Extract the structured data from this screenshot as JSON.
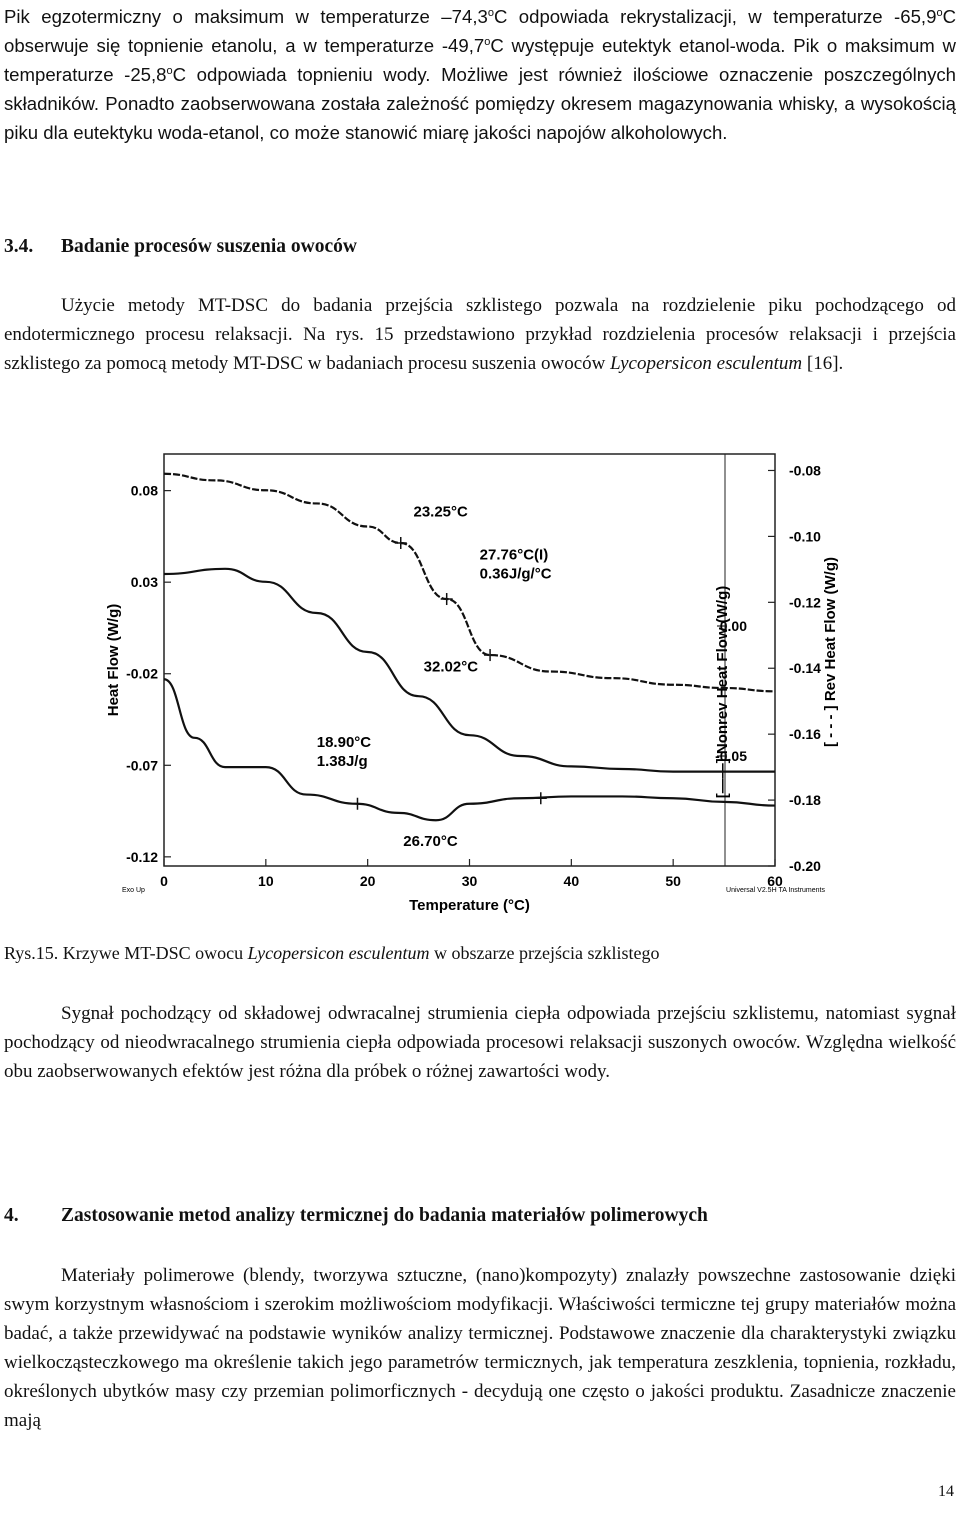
{
  "intro": {
    "line1_a": "Pik  egzotermiczny  o  maksimum  w  temperaturze  –74,3",
    "deg": "o",
    "line1_b": "C  odpowiada  rekrystalizacji,  w temperaturze -65,9",
    "line1_c": "C obserwuje się topnienie etanolu, a w temperaturze -49,7",
    "line1_d": "C występuje eutektyk etanol-woda. Pik o maksimum w temperaturze -25,8",
    "line1_e": "C odpowiada topnieniu wody. Możliwe jest również ilościowe oznaczenie poszczególnych składników. Ponadto zaobserwowana została zależność pomiędzy okresem magazynowania whisky, a wysokością piku dla eutektyku woda-etanol, co może stanowić miarę jakości napojów alkoholowych."
  },
  "section_3_4": {
    "number": "3.4.",
    "title": "Badanie procesów suszenia owoców",
    "para_a": "Użycie metody MT-DSC do badania przejścia szklistego pozwala  na rozdzielenie piku pochodzącego od endotermicznego procesu relaksacji. Na rys. 15 przedstawiono przykład rozdzielenia procesów relaksacji i przejścia szklistego za pomocą metody MT-DSC w badaniach procesu suszenia owoców ",
    "para_species": "Lycopersicon esculentum",
    "para_b": " [16]."
  },
  "figure_caption": {
    "label": "Rys.15.",
    "text_a": " Krzywe MT-DSC owocu ",
    "species": "Lycopersicon esculentum",
    "text_b": "  w obszarze przejścia szklistego"
  },
  "para_signal": "Sygnał pochodzący od składowej odwracalnej strumienia ciepła odpowiada  przejściu szklistemu, natomiast sygnał pochodzący od nieodwracalnego strumienia ciepła odpowiada procesowi relaksacji suszonych owoców. Względna wielkość obu zaobserwowanych efektów jest różna dla próbek o różnej zawartości wody.",
  "section_4": {
    "number": "4.",
    "title": "Zastosowanie metod analizy termicznej do badania materiałów polimerowych",
    "para": "Materiały polimerowe (blendy, tworzywa sztuczne, (nano)kompozyty) znalazły powszechne zastosowanie  dzięki swym korzystnym własnościom i szerokim możliwościom modyfikacji. Właściwości termiczne tej grupy materiałów można badać, a także przewidywać na podstawie wyników analizy termicznej. Podstawowe znaczenie dla charakterystyki związku wielkocząsteczkowego ma określenie takich jego parametrów termicznych, jak temperatura zeszklenia, topnienia, rozkładu, określonych ubytków masy czy przemian polimorficznych - decydują one często o jakości produktu. Zasadnicze znaczenie mają"
  },
  "page_number": "14",
  "chart_data": {
    "type": "line",
    "title": "",
    "xlabel": "Temperature (°C)",
    "ylabel_left": "Heat Flow (W/g)",
    "ylabel_right_1": "Nonrev Heat Flow (W/g)",
    "ylabel_right_2": "Rev Heat Flow (W/g)",
    "xlim": [
      0,
      60
    ],
    "x_ticks": [
      "0",
      "10",
      "20",
      "30",
      "40",
      "50",
      "60"
    ],
    "y_left_ticks": [
      "0.08",
      "0.03",
      "-0.02",
      "-0.07",
      "-0.12"
    ],
    "y_right1_ticks": [
      "0.00",
      "-0.05"
    ],
    "y_right2_ticks": [
      "-0.08",
      "-0.10",
      "-0.12",
      "-0.14",
      "-0.16",
      "-0.18",
      "-0.20"
    ],
    "footer_left": "Exo Up",
    "footer_right": "Universal V2.5H TA Instruments",
    "annotations": [
      "23.25°C",
      "27.76°C(I)",
      "0.36J/g/°C",
      "32.02°C",
      "18.90°C",
      "1.38J/g",
      "26.70°C"
    ],
    "series": [
      {
        "name": "Rev Heat Flow",
        "axis": "right2",
        "x": [
          0,
          5,
          10,
          15,
          20,
          23.25,
          27.76,
          32.02,
          38,
          44,
          50,
          55,
          60
        ],
        "y": [
          -0.081,
          -0.083,
          -0.086,
          -0.09,
          -0.097,
          -0.102,
          -0.119,
          -0.136,
          -0.141,
          -0.143,
          -0.145,
          -0.146,
          -0.147
        ]
      },
      {
        "name": "Nonrev Heat Flow",
        "axis": "right1",
        "x": [
          0,
          6,
          10,
          15,
          20,
          25,
          30,
          35,
          40,
          45,
          50,
          55,
          60
        ],
        "y": [
          0.02,
          0.022,
          0.017,
          0.005,
          -0.01,
          -0.027,
          -0.042,
          -0.05,
          -0.054,
          -0.055,
          -0.056,
          -0.056,
          -0.056
        ]
      },
      {
        "name": "Heat Flow",
        "axis": "left",
        "x": [
          0,
          3,
          6,
          10,
          14,
          18.9,
          23,
          26.7,
          30,
          35,
          40,
          45,
          50,
          55,
          60
        ],
        "y": [
          -0.023,
          -0.055,
          -0.071,
          -0.071,
          -0.086,
          -0.091,
          -0.096,
          -0.1,
          -0.091,
          -0.088,
          -0.087,
          -0.087,
          -0.088,
          -0.09,
          -0.092
        ]
      }
    ]
  }
}
